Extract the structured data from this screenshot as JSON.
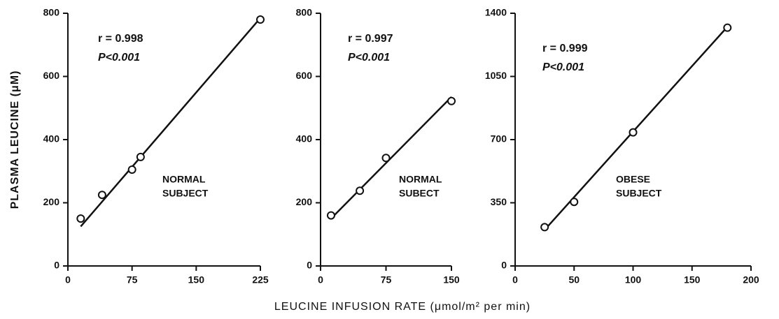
{
  "axis_labels": {
    "y": "PLASMA LEUCINE (μM)",
    "x": "LEUCINE INFUSION RATE (μmol/m² per min)"
  },
  "chart_data": [
    {
      "type": "scatter",
      "x": [
        15,
        40,
        75,
        85,
        225
      ],
      "values": [
        150,
        225,
        305,
        345,
        780
      ],
      "fit": {
        "x": [
          15,
          225
        ],
        "y": [
          125,
          785
        ]
      },
      "xlim": [
        0,
        225
      ],
      "xticks": [
        0,
        75,
        150,
        225
      ],
      "ylim": [
        0,
        800
      ],
      "yticks": [
        0,
        200,
        400,
        600,
        800
      ],
      "annotations": [
        "r = 0.998",
        "P<0.001"
      ],
      "subject": [
        "NORMAL",
        "SUBJECT"
      ]
    },
    {
      "type": "scatter",
      "x": [
        12,
        45,
        75,
        150
      ],
      "values": [
        160,
        238,
        342,
        522
      ],
      "fit": {
        "x": [
          12,
          150
        ],
        "y": [
          150,
          535
        ]
      },
      "xlim": [
        0,
        150
      ],
      "xticks": [
        0,
        75,
        150
      ],
      "ylim": [
        0,
        800
      ],
      "yticks": [
        0,
        200,
        400,
        600,
        800
      ],
      "annotations": [
        "r = 0.997",
        "P<0.001"
      ],
      "subject": [
        "NORMAL",
        "SUBECT"
      ]
    },
    {
      "type": "scatter",
      "x": [
        25,
        50,
        100,
        180
      ],
      "values": [
        215,
        355,
        740,
        1320
      ],
      "fit": {
        "x": [
          25,
          180
        ],
        "y": [
          200,
          1325
        ]
      },
      "xlim": [
        0,
        200
      ],
      "xticks": [
        0,
        50,
        100,
        150,
        200
      ],
      "ylim": [
        0,
        1400
      ],
      "yticks": [
        0,
        350,
        700,
        1050,
        1400
      ],
      "annotations": [
        "r = 0.999",
        "P<0.001"
      ],
      "subject": [
        "OBESE",
        "SUBJECT"
      ]
    }
  ]
}
